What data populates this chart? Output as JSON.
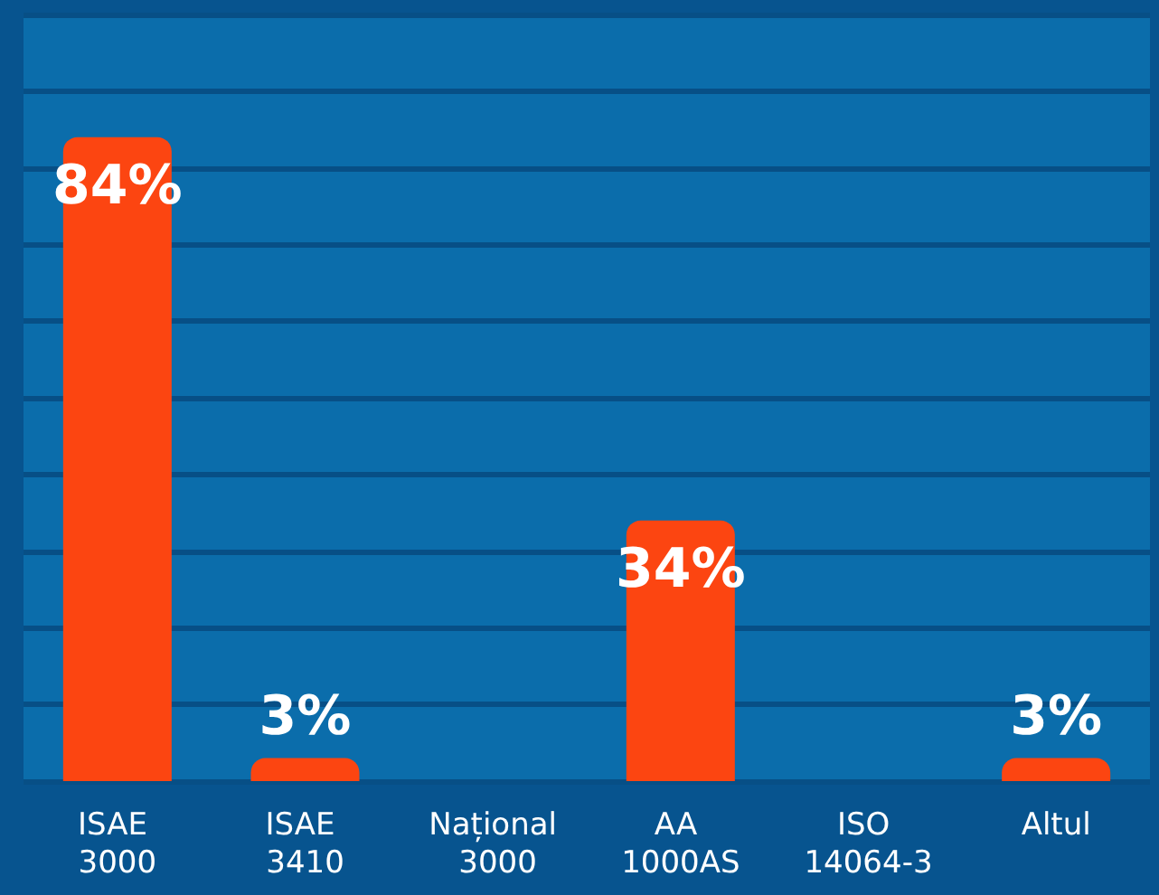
{
  "chart_data": {
    "type": "bar",
    "categories": [
      "ISAE 3000",
      "ISAE 3410",
      "Național 3000",
      "AA 1000AS",
      "ISO 14064-3",
      "Altul"
    ],
    "values": [
      84,
      3,
      0,
      34,
      0,
      3
    ],
    "value_labels": [
      "84%",
      "3%",
      null,
      "34%",
      null,
      "3%"
    ],
    "color": "#fc4511",
    "ylim": [
      0,
      100
    ],
    "yticks": [
      {
        "value": 0,
        "label": null
      },
      {
        "value": 10,
        "label": null
      },
      {
        "value": 20,
        "label": null
      },
      {
        "value": 30,
        "label": null
      },
      {
        "value": 40,
        "label": null
      },
      {
        "value": 50,
        "label": null
      },
      {
        "value": 60,
        "label": null
      },
      {
        "value": 70,
        "label": null
      },
      {
        "value": 80,
        "label": null
      },
      {
        "value": 90,
        "label": null
      },
      {
        "value": 100,
        "label": null
      }
    ],
    "grid": "y",
    "tick_labels": "x"
  }
}
